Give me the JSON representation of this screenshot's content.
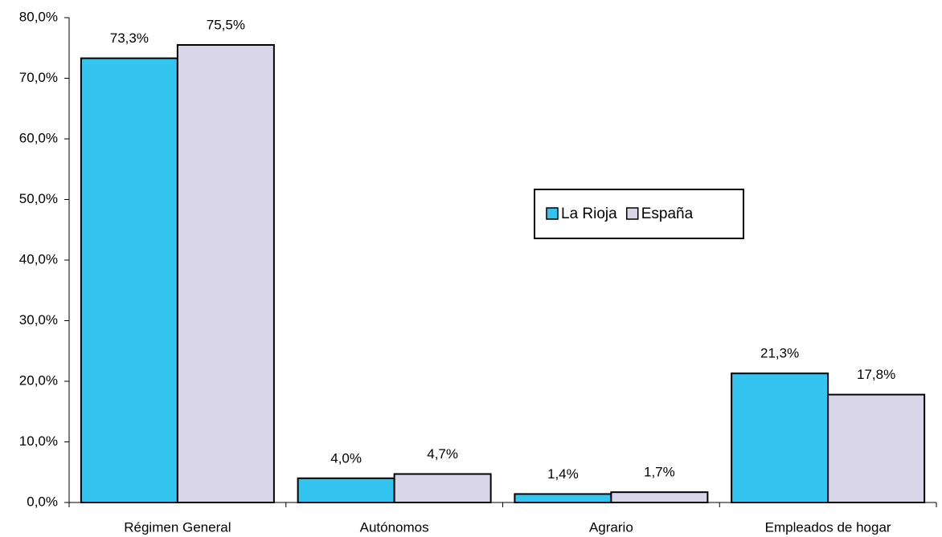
{
  "chart_data": {
    "type": "bar",
    "categories": [
      "Régimen General",
      "Autónomos",
      "Agrario",
      "Empleados de hogar"
    ],
    "series": [
      {
        "name": "La Rioja",
        "color": "#33c5f0",
        "values": [
          73.3,
          4.0,
          1.4,
          21.3
        ],
        "value_labels": [
          "73,3%",
          "4,0%",
          "1,4%",
          "21,3%"
        ]
      },
      {
        "name": "España",
        "color": "#dad6ea",
        "values": [
          75.5,
          4.7,
          1.7,
          17.8
        ],
        "value_labels": [
          "75,5%",
          "4,7%",
          "1,7%",
          "17,8%"
        ]
      }
    ],
    "ylim": [
      0,
      80
    ],
    "yticks": [
      {
        "value": 0,
        "label": "0,0%"
      },
      {
        "value": 10,
        "label": "10,0%"
      },
      {
        "value": 20,
        "label": "20,0%"
      },
      {
        "value": 30,
        "label": "30,0%"
      },
      {
        "value": 40,
        "label": "40,0%"
      },
      {
        "value": 50,
        "label": "50,0%"
      },
      {
        "value": 60,
        "label": "60,0%"
      },
      {
        "value": 70,
        "label": "70,0%"
      },
      {
        "value": 80,
        "label": "80,0%"
      }
    ],
    "legend": "right"
  }
}
